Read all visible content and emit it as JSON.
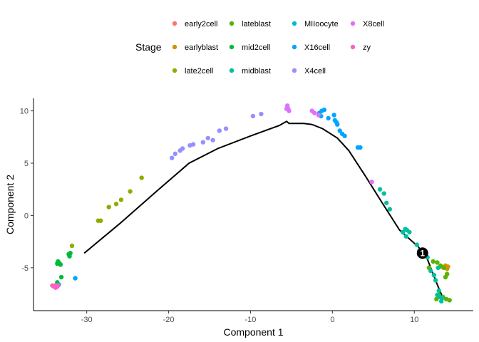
{
  "chart_data": {
    "type": "scatter",
    "xlabel": "Component 1",
    "ylabel": "Component 2",
    "xlim": [
      -36.5,
      17.2
    ],
    "ylim": [
      -9.1,
      11.2
    ],
    "x_ticks": [
      -30,
      -20,
      -10,
      0,
      10
    ],
    "y_ticks": [
      -5,
      0,
      5,
      10
    ],
    "grid": false,
    "legend": {
      "title": "Stage",
      "placement": "top",
      "columns": [
        [
          "early2cell",
          "earlyblast",
          "late2cell"
        ],
        [
          "lateblast",
          "mid2cell",
          "midblast"
        ],
        [
          "MIIoocyte",
          "X16cell",
          "X4cell"
        ],
        [
          "X8cell",
          "zy"
        ]
      ]
    },
    "series": [
      {
        "name": "early2cell",
        "color": "#F8766D",
        "points": [
          [
            -33.9,
            -6.7
          ],
          [
            -33.6,
            -6.8
          ]
        ]
      },
      {
        "name": "earlyblast",
        "color": "#D39200",
        "points": [
          [
            13.3,
            -4.9
          ],
          [
            13.8,
            -4.8
          ],
          [
            14.1,
            -4.9
          ],
          [
            14.0,
            -5.1
          ]
        ]
      },
      {
        "name": "late2cell",
        "color": "#93AA00",
        "points": [
          [
            -31.8,
            -2.9
          ],
          [
            -28.6,
            -0.5
          ],
          [
            -28.3,
            -0.5
          ],
          [
            -27.3,
            0.8
          ],
          [
            -26.4,
            1.1
          ],
          [
            -25.8,
            1.5
          ],
          [
            -24.7,
            2.3
          ],
          [
            -23.3,
            3.6
          ]
        ]
      },
      {
        "name": "lateblast",
        "color": "#5BB300",
        "points": [
          [
            12.3,
            -4.4
          ],
          [
            12.8,
            -4.5
          ],
          [
            13.2,
            -4.8
          ],
          [
            13.6,
            -5.0
          ],
          [
            14.0,
            -5.6
          ],
          [
            13.8,
            -5.9
          ],
          [
            13.0,
            -7.6
          ],
          [
            13.5,
            -7.8
          ],
          [
            13.9,
            -8.0
          ],
          [
            14.3,
            -8.1
          ],
          [
            12.7,
            -8.0
          ],
          [
            11.8,
            -5.0
          ]
        ]
      },
      {
        "name": "mid2cell",
        "color": "#00BA38",
        "points": [
          [
            -33.5,
            -4.4
          ],
          [
            -33.3,
            -4.6
          ],
          [
            -33.2,
            -4.7
          ],
          [
            -33.6,
            -4.6
          ],
          [
            -32.2,
            -3.7
          ],
          [
            -32.1,
            -3.9
          ],
          [
            -33.1,
            -5.9
          ],
          [
            -33.6,
            -6.4
          ],
          [
            -32.0,
            -3.6
          ]
        ]
      },
      {
        "name": "midblast",
        "color": "#00C19F",
        "points": [
          [
            5.8,
            2.5
          ],
          [
            6.3,
            2.1
          ],
          [
            6.6,
            1.2
          ],
          [
            7.0,
            0.6
          ],
          [
            8.6,
            -1.6
          ],
          [
            8.9,
            -1.3
          ],
          [
            9.1,
            -1.4
          ],
          [
            9.4,
            -1.6
          ],
          [
            9.0,
            -2.0
          ],
          [
            10.3,
            -2.8
          ],
          [
            10.6,
            -3.4
          ],
          [
            11.6,
            -4.0
          ],
          [
            12.0,
            -5.3
          ],
          [
            12.4,
            -5.7
          ],
          [
            12.6,
            -6.2
          ],
          [
            13.0,
            -7.2
          ],
          [
            13.1,
            -7.8
          ],
          [
            13.4,
            -7.9
          ],
          [
            12.8,
            -7.6
          ],
          [
            13.3,
            -8.2
          ],
          [
            12.9,
            -5.0
          ]
        ]
      },
      {
        "name": "MIIoocyte",
        "color": "#00B9E3",
        "points": [
          [
            -33.4,
            -6.6
          ]
        ]
      },
      {
        "name": "X16cell",
        "color": "#00A5FF",
        "points": [
          [
            -31.4,
            -6.0
          ],
          [
            -1.6,
            9.8
          ],
          [
            -1.3,
            10.0
          ],
          [
            -1.0,
            10.1
          ],
          [
            -1.4,
            9.5
          ],
          [
            0.2,
            9.6
          ],
          [
            0.3,
            9.1
          ],
          [
            0.5,
            8.9
          ],
          [
            0.6,
            8.7
          ],
          [
            0.9,
            8.1
          ],
          [
            1.2,
            7.8
          ],
          [
            1.5,
            7.6
          ],
          [
            3.1,
            6.5
          ],
          [
            3.4,
            6.5
          ],
          [
            -0.5,
            9.3
          ]
        ]
      },
      {
        "name": "X4cell",
        "color": "#9590FF",
        "points": [
          [
            -19.6,
            5.5
          ],
          [
            -19.2,
            5.9
          ],
          [
            -18.6,
            6.2
          ],
          [
            -18.3,
            6.4
          ],
          [
            -17.4,
            6.7
          ],
          [
            -17.0,
            6.8
          ],
          [
            -15.8,
            7.0
          ],
          [
            -15.2,
            7.4
          ],
          [
            -14.6,
            7.2
          ],
          [
            -13.8,
            8.1
          ],
          [
            -13.0,
            8.3
          ],
          [
            -9.7,
            9.5
          ],
          [
            -8.7,
            9.7
          ]
        ]
      },
      {
        "name": "X8cell",
        "color": "#DB72FB",
        "points": [
          [
            -5.5,
            10.5
          ],
          [
            -5.4,
            10.2
          ],
          [
            -5.3,
            10.0
          ],
          [
            -5.6,
            10.2
          ],
          [
            -2.5,
            10.0
          ],
          [
            -2.2,
            9.8
          ],
          [
            -1.7,
            9.6
          ],
          [
            4.8,
            3.2
          ]
        ]
      },
      {
        "name": "zy",
        "color": "#FF61C3",
        "points": [
          [
            -34.0,
            -6.8
          ],
          [
            -33.7,
            -6.7
          ],
          [
            -33.8,
            -6.9
          ],
          [
            -33.5,
            -6.7
          ],
          [
            -34.2,
            -6.7
          ]
        ]
      }
    ],
    "trajectory": [
      [
        -30.3,
        -3.6
      ],
      [
        -26.0,
        -0.8
      ],
      [
        -21.5,
        2.3
      ],
      [
        -17.5,
        5.0
      ],
      [
        -14.0,
        6.4
      ],
      [
        -10.0,
        7.6
      ],
      [
        -6.5,
        8.6
      ],
      [
        -5.6,
        9.0
      ],
      [
        -5.3,
        8.8
      ],
      [
        -3.5,
        8.8
      ],
      [
        -2.5,
        8.7
      ],
      [
        -1.2,
        8.3
      ],
      [
        0.6,
        7.4
      ],
      [
        2.0,
        6.2
      ],
      [
        4.0,
        3.8
      ],
      [
        6.0,
        1.3
      ],
      [
        8.2,
        -1.4
      ],
      [
        10.5,
        -3.0
      ],
      [
        11.6,
        -4.2
      ],
      [
        12.2,
        -5.4
      ],
      [
        12.8,
        -6.6
      ],
      [
        13.5,
        -7.9
      ]
    ],
    "branch_point": {
      "label": "1",
      "x": 11.0,
      "y": -3.6
    }
  }
}
